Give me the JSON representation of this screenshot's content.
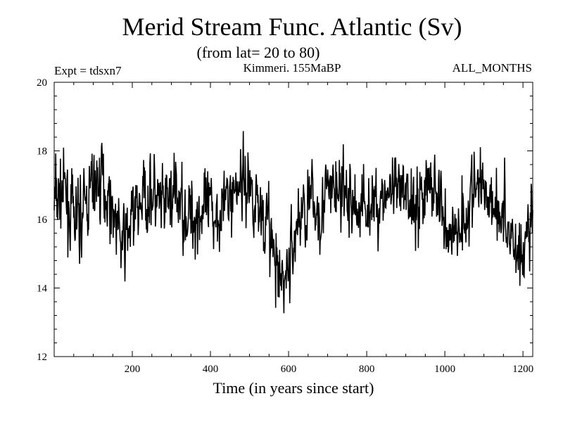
{
  "chart_data": {
    "type": "line",
    "title": "Merid Stream Func. Atlantic (Sv)",
    "subtitle": "(from lat= 20 to 80)",
    "annotations": {
      "left": "Expt = tdsxn7",
      "center": "Kimmeri. 155MaBP",
      "right": "ALL_MONTHS"
    },
    "xlabel": "Time (in years since start)",
    "ylabel": "",
    "xlim": [
      0,
      1225
    ],
    "ylim": [
      12,
      20
    ],
    "xticks": [
      200,
      400,
      600,
      800,
      1000,
      1200
    ],
    "yticks": [
      12,
      14,
      16,
      18,
      20
    ],
    "grid": false,
    "series": [
      {
        "name": "Meridional stream function (Sv)",
        "color": "#000000",
        "x": [
          0,
          25,
          50,
          75,
          100,
          125,
          150,
          175,
          200,
          225,
          250,
          275,
          300,
          325,
          350,
          375,
          400,
          425,
          450,
          475,
          500,
          525,
          550,
          575,
          600,
          625,
          650,
          675,
          700,
          725,
          750,
          775,
          800,
          825,
          850,
          875,
          900,
          925,
          950,
          975,
          1000,
          1025,
          1050,
          1075,
          1100,
          1125,
          1150,
          1175,
          1200,
          1225
        ],
        "values": [
          16.5,
          16.8,
          15.9,
          16.2,
          17.0,
          17.1,
          16.4,
          15.2,
          16.0,
          16.6,
          16.8,
          16.2,
          16.7,
          16.5,
          16.0,
          16.3,
          16.1,
          16.4,
          16.6,
          17.2,
          17.0,
          16.4,
          15.8,
          14.0,
          14.6,
          16.0,
          16.5,
          16.3,
          16.7,
          16.9,
          16.6,
          16.3,
          16.5,
          16.4,
          16.8,
          16.6,
          16.7,
          16.5,
          16.9,
          17.0,
          15.8,
          15.6,
          16.2,
          16.8,
          17.0,
          16.6,
          16.1,
          15.4,
          14.8,
          16.4
        ],
        "noise_amplitude": 1.2,
        "noise_seed": 7
      }
    ]
  }
}
